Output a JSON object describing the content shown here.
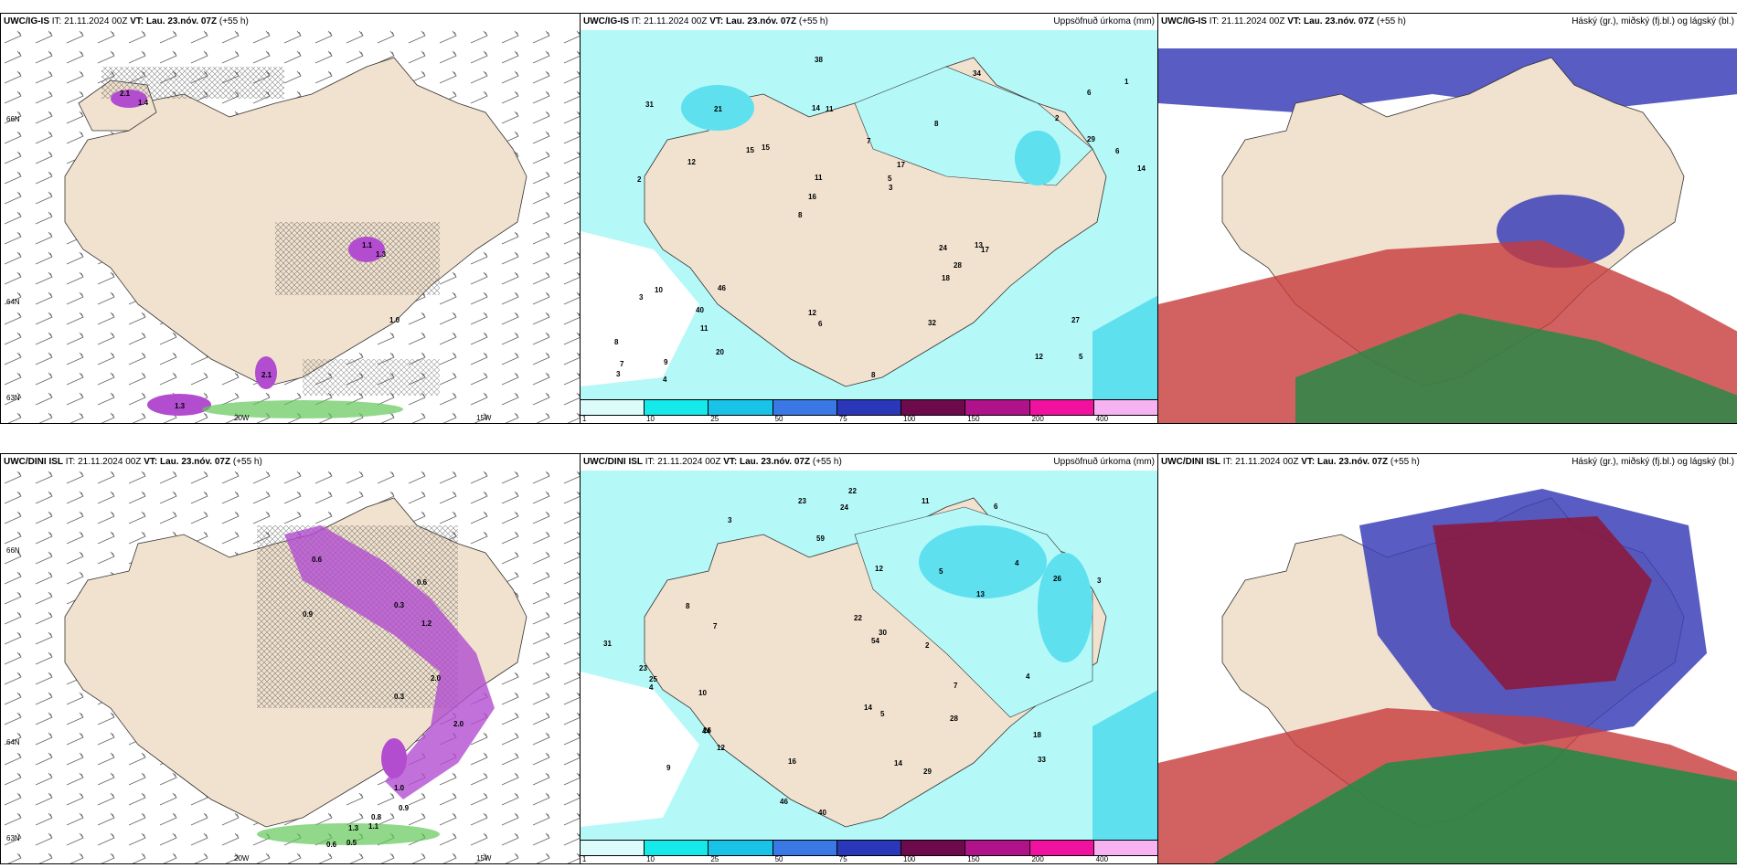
{
  "rows": [
    {
      "model": "UWC/IG-IS",
      "panels": {
        "wind": {
          "model": "UWC/IG-IS",
          "it_label": "IT:",
          "it": "21.11.2024 00Z",
          "vt_label": "VT:",
          "vt": "Lau. 23.nóv. 07Z",
          "lead": "(+55 h)",
          "axis": {
            "lat": [
              "66N",
              "64N",
              "63N"
            ],
            "lon": [
              "20W",
              "15W"
            ]
          },
          "precip_labels": [
            "2.1",
            "1.4",
            "1.1",
            "1.3",
            "1.0",
            "2.1",
            "1.3"
          ]
        },
        "accum": {
          "model": "UWC/IG-IS",
          "it_label": "IT:",
          "it": "21.11.2024 00Z",
          "vt_label": "VT:",
          "vt": "Lau. 23.nóv. 07Z",
          "lead": "(+55 h)",
          "title": "Uppsöfnuð úrkoma (mm)",
          "axis": {
            "lat": [
              "66N",
              "64N"
            ]
          },
          "values": [
            "5",
            "2",
            "6",
            "8",
            "8",
            "9",
            "14",
            "7",
            "10",
            "15",
            "8",
            "11",
            "11",
            "17",
            "17",
            "31",
            "38",
            "14",
            "24",
            "29",
            "16",
            "12",
            "11",
            "21",
            "34",
            "46",
            "12",
            "27",
            "13",
            "8",
            "15",
            "12",
            "18",
            "20",
            "6",
            "5",
            "7",
            "6",
            "3",
            "3",
            "2",
            "1",
            "28",
            "32",
            "40",
            "4",
            "3"
          ]
        },
        "cloud": {
          "model": "UWC/IG-IS",
          "it_label": "IT:",
          "it": "21.11.2024 00Z",
          "vt_label": "VT:",
          "vt": "Lau. 23.nóv. 07Z",
          "lead": "(+55 h)",
          "title": "Háský (gr.), miðský (fj.bl.) og lágský (bl.)"
        }
      }
    },
    {
      "model": "UWC/DINI ISL",
      "panels": {
        "wind": {
          "model": "UWC/DINI ISL",
          "it_label": "IT:",
          "it": "21.11.2024 00Z",
          "vt_label": "VT:",
          "vt": "Lau. 23.nóv. 07Z",
          "lead": "(+55 h)",
          "axis": {
            "lat": [
              "66N",
              "64N",
              "63N"
            ],
            "lon": [
              "20W",
              "15W"
            ]
          },
          "precip_labels": [
            "0.6",
            "0.3",
            "1.2",
            "2.0",
            "0.3",
            "1.0",
            "0.9",
            "0.8",
            "1.3",
            "1.1",
            "0.6",
            "0.5",
            "2.0",
            "0.6",
            "0.9"
          ]
        },
        "accum": {
          "model": "UWC/DINI ISL",
          "it_label": "IT:",
          "it": "21.11.2024 00Z",
          "vt_label": "VT:",
          "vt": "Lau. 23.nóv. 07Z",
          "lead": "(+55 h)",
          "title": "Uppsöfnuð úrkoma (mm)",
          "axis": {
            "lat": [
              "66N",
              "64N"
            ]
          },
          "values": [
            "9",
            "6",
            "3",
            "4",
            "5",
            "7",
            "10",
            "26",
            "26",
            "13",
            "23",
            "22",
            "28",
            "54",
            "40",
            "23",
            "33",
            "31",
            "44",
            "46",
            "29",
            "24",
            "59",
            "30",
            "22",
            "16",
            "25",
            "11",
            "12",
            "7",
            "8",
            "12",
            "14",
            "14",
            "18",
            "4",
            "3",
            "2",
            "5",
            "4"
          ]
        },
        "cloud": {
          "model": "UWC/DINI ISL",
          "it_label": "IT:",
          "it": "21.11.2024 00Z",
          "vt_label": "VT:",
          "vt": "Lau. 23.nóv. 07Z",
          "lead": "(+55 h)",
          "title": "Háský (gr.), miðský (fj.bl.) og lágský (bl.)"
        }
      }
    }
  ],
  "precip_legend": {
    "ticks": [
      "1",
      "10",
      "25",
      "50",
      "75",
      "100",
      "150",
      "200",
      "400"
    ],
    "colors": [
      "#dcfcfc",
      "#16e9e9",
      "#19c3e8",
      "#3a78e6",
      "#2a37b8",
      "#6d0a4c",
      "#b0128a",
      "#f0119f",
      "#f7b2f2"
    ]
  },
  "colors": {
    "land": "#f1e2cf",
    "sea_light": "#b4f8f8",
    "sea_mid": "#5ee0ef",
    "precip_purple": "#b24dd0",
    "snow_green": "#62c85a",
    "cloud_high": "#c73b3b",
    "cloud_mid": "#3c3fb8",
    "cloud_low": "#1f8b45"
  }
}
